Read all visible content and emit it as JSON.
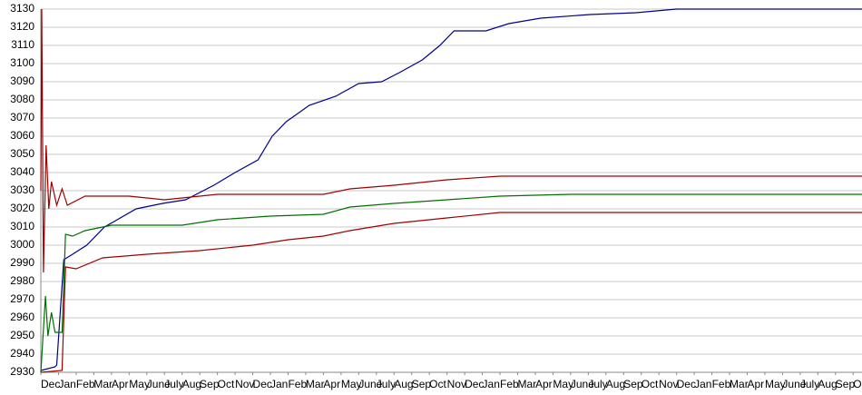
{
  "chart_data": {
    "type": "line",
    "xlim": [
      0,
      46.5
    ],
    "ylim": [
      2930,
      3130
    ],
    "yticks": [
      2930,
      2940,
      2950,
      2960,
      2970,
      2980,
      2990,
      3000,
      3010,
      3020,
      3030,
      3040,
      3050,
      3060,
      3070,
      3080,
      3090,
      3100,
      3110,
      3120,
      3130
    ],
    "xticks": [
      {
        "value": 0,
        "label": "Dec"
      },
      {
        "value": 1,
        "label": "Jan"
      },
      {
        "value": 2,
        "label": "Feb"
      },
      {
        "value": 3,
        "label": "Mar"
      },
      {
        "value": 4,
        "label": "Apr"
      },
      {
        "value": 5,
        "label": "May"
      },
      {
        "value": 6,
        "label": "June"
      },
      {
        "value": 7,
        "label": "July"
      },
      {
        "value": 8,
        "label": "Aug"
      },
      {
        "value": 9,
        "label": "Sep"
      },
      {
        "value": 10,
        "label": "Oct"
      },
      {
        "value": 11,
        "label": "Nov"
      },
      {
        "value": 12,
        "label": "Dec"
      },
      {
        "value": 13,
        "label": "Jan"
      },
      {
        "value": 14,
        "label": "Feb"
      },
      {
        "value": 15,
        "label": "Mar"
      },
      {
        "value": 16,
        "label": "Apr"
      },
      {
        "value": 17,
        "label": "May"
      },
      {
        "value": 18,
        "label": "June"
      },
      {
        "value": 19,
        "label": "July"
      },
      {
        "value": 20,
        "label": "Aug"
      },
      {
        "value": 21,
        "label": "Sep"
      },
      {
        "value": 22,
        "label": "Oct"
      },
      {
        "value": 23,
        "label": "Nov"
      },
      {
        "value": 24,
        "label": "Dec"
      },
      {
        "value": 25,
        "label": "Jan"
      },
      {
        "value": 26,
        "label": "Feb"
      },
      {
        "value": 27,
        "label": "Mar"
      },
      {
        "value": 28,
        "label": "Apr"
      },
      {
        "value": 29,
        "label": "May"
      },
      {
        "value": 30,
        "label": "June"
      },
      {
        "value": 31,
        "label": "July"
      },
      {
        "value": 32,
        "label": "Aug"
      },
      {
        "value": 33,
        "label": "Sep"
      },
      {
        "value": 34,
        "label": "Oct"
      },
      {
        "value": 35,
        "label": "Nov"
      },
      {
        "value": 36,
        "label": "Dec"
      },
      {
        "value": 37,
        "label": "Jan"
      },
      {
        "value": 38,
        "label": "Feb"
      },
      {
        "value": 39,
        "label": "Mar"
      },
      {
        "value": 40,
        "label": "Apr"
      },
      {
        "value": 41,
        "label": "May"
      },
      {
        "value": 42,
        "label": "June"
      },
      {
        "value": 43,
        "label": "July"
      },
      {
        "value": 44,
        "label": "Aug"
      },
      {
        "value": 45,
        "label": "Sep"
      },
      {
        "value": 46,
        "label": "Oct"
      }
    ],
    "grid": true,
    "series": [
      {
        "color": "#00008b",
        "x": [
          0,
          0.8,
          0.9,
          1.3,
          1.8,
          2.6,
          3.6,
          5.4,
          6.9,
          8.2,
          9.8,
          11,
          12.3,
          13.1,
          13.9,
          15.2,
          16.7,
          18,
          19.3,
          20.3,
          21.6,
          22.6,
          23.4,
          25.2,
          26.5,
          28.3,
          31.1,
          33.7,
          36,
          46.5
        ],
        "values": [
          2931,
          2933,
          2934,
          2992,
          2995,
          3000,
          3010,
          3020,
          3023,
          3025,
          3033,
          3040,
          3047,
          3060,
          3068,
          3077,
          3082,
          3089,
          3090,
          3095,
          3102,
          3110,
          3118,
          3118,
          3122,
          3125,
          3127,
          3128,
          3130,
          3130
        ]
      },
      {
        "color": "#007000",
        "x": [
          0,
          0.26,
          0.4,
          0.6,
          0.8,
          1.2,
          1.4,
          1.8,
          2.5,
          4,
          8,
          10,
          13,
          16,
          17.5,
          20,
          23,
          26,
          30,
          46.5
        ],
        "values": [
          2930,
          2972,
          2950,
          2963,
          2952,
          2952,
          3006,
          3005,
          3008,
          3011,
          3011,
          3014,
          3016,
          3017,
          3021,
          3023,
          3025,
          3027,
          3028,
          3028
        ]
      },
      {
        "color": "#a00000",
        "x": [
          0,
          0.05,
          0.15,
          0.3,
          0.45,
          0.6,
          0.9,
          1.2,
          1.5,
          2.5,
          5,
          7,
          10,
          13,
          16,
          17.5,
          20,
          23,
          26,
          46.5
        ],
        "values": [
          3030,
          3130,
          2985,
          3055,
          3020,
          3035,
          3022,
          3031,
          3022,
          3027,
          3027,
          3025,
          3028,
          3028,
          3028,
          3031,
          3033,
          3036,
          3038,
          3038
        ]
      },
      {
        "color": "#a00000",
        "x": [
          0,
          1.2,
          1.4,
          2,
          3.5,
          6,
          9,
          12,
          14,
          16,
          17.5,
          20,
          23,
          26,
          46.5
        ],
        "values": [
          2930,
          2931,
          2988,
          2987,
          2993,
          2995,
          2997,
          3000,
          3003,
          3005,
          3008,
          3012,
          3015,
          3018,
          3018
        ]
      }
    ]
  }
}
